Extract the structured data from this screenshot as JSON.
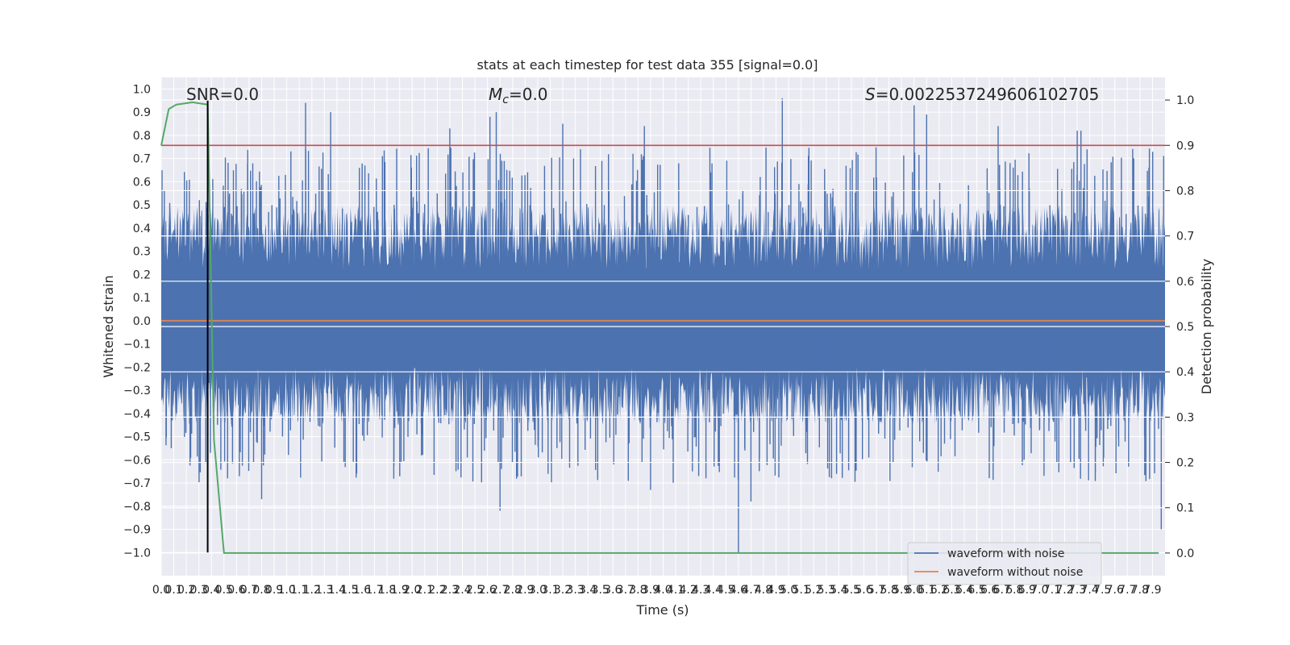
{
  "chart_data": {
    "type": "line",
    "title": "stats at each timestep for test data 355 [signal=0.0]",
    "xlabel": "Time (s)",
    "ylabel": "Whitened strain",
    "y2label": "Detection probability",
    "xlim": [
      0.0,
      8.0
    ],
    "ylim": [
      -1.1,
      1.05
    ],
    "y2lim": [
      -0.05,
      1.05
    ],
    "x_ticks": [
      0.0,
      0.1,
      0.2,
      0.3,
      0.4,
      0.5,
      0.6,
      0.7,
      0.8,
      0.9,
      1.0,
      1.1,
      1.2,
      1.3,
      1.4,
      1.5,
      1.6,
      1.7,
      1.8,
      1.9,
      2.0,
      2.1,
      2.2,
      2.3,
      2.4,
      2.5,
      2.6,
      2.7,
      2.8,
      2.9,
      3.0,
      3.1,
      3.2,
      3.3,
      3.4,
      3.5,
      3.6,
      3.7,
      3.8,
      3.9,
      4.0,
      4.1,
      4.2,
      4.3,
      4.4,
      4.5,
      4.6,
      4.7,
      4.8,
      4.9,
      5.0,
      5.1,
      5.2,
      5.3,
      5.4,
      5.5,
      5.6,
      5.7,
      5.8,
      5.9,
      6.0,
      6.1,
      6.2,
      6.3,
      6.4,
      6.5,
      6.6,
      6.7,
      6.8,
      6.9,
      7.0,
      7.1,
      7.2,
      7.3,
      7.4,
      7.5,
      7.6,
      7.7,
      7.8,
      7.9
    ],
    "y_ticks": [
      -1.0,
      -0.9,
      -0.8,
      -0.7,
      -0.6,
      -0.5,
      -0.4,
      -0.3,
      -0.2,
      -0.1,
      0.0,
      0.1,
      0.2,
      0.3,
      0.4,
      0.5,
      0.6,
      0.7,
      0.8,
      0.9,
      1.0
    ],
    "y2_ticks": [
      0.0,
      0.1,
      0.2,
      0.3,
      0.4,
      0.5,
      0.6,
      0.7,
      0.8,
      0.9,
      1.0
    ],
    "grid": true,
    "legend_position": "lower-right",
    "annotations": {
      "snr": "SNR=0.0",
      "mc_symbol": "M",
      "mc_sub": "c",
      "mc_value": "=0.0",
      "s_symbol": "S",
      "s_value": "=0.002253724960610270​5"
    },
    "series": [
      {
        "name": "waveform with noise",
        "color": "#4c72b0",
        "axis": "left",
        "style": "noise",
        "amplitude_band": [
          -0.45,
          0.5
        ],
        "peaks_positive": [
          [
            1.15,
            0.94
          ],
          [
            1.35,
            0.9
          ],
          [
            2.62,
            0.88
          ],
          [
            2.67,
            0.9
          ],
          [
            4.95,
            0.96
          ],
          [
            6.0,
            0.93
          ],
          [
            6.1,
            0.89
          ],
          [
            6.67,
            0.84
          ],
          [
            7.3,
            0.82
          ],
          [
            7.33,
            0.82
          ],
          [
            2.3,
            0.83
          ],
          [
            3.2,
            0.85
          ],
          [
            3.85,
            0.84
          ]
        ],
        "peaks_negative": [
          [
            4.6,
            -1.0
          ],
          [
            2.7,
            -0.82
          ],
          [
            0.8,
            -0.77
          ],
          [
            7.97,
            -0.9
          ],
          [
            3.9,
            -0.73
          ],
          [
            4.7,
            -0.78
          ]
        ]
      },
      {
        "name": "waveform without noise",
        "color": "#dd8452",
        "axis": "left",
        "y": 0.0
      },
      {
        "name": "",
        "color": "#55a868",
        "axis": "right",
        "x": [
          0.0,
          0.06,
          0.12,
          0.25,
          0.37,
          0.39,
          0.42,
          0.5,
          7.95
        ],
        "y": [
          0.9,
          0.98,
          0.99,
          0.995,
          0.99,
          0.7,
          0.25,
          0.0,
          0.0
        ]
      }
    ],
    "threshold": {
      "color": "#c44e52",
      "axis": "right",
      "y": 0.9
    },
    "marker": {
      "color": "#000000",
      "x": 0.37,
      "y_range": [
        -1.0,
        0.95
      ]
    }
  }
}
